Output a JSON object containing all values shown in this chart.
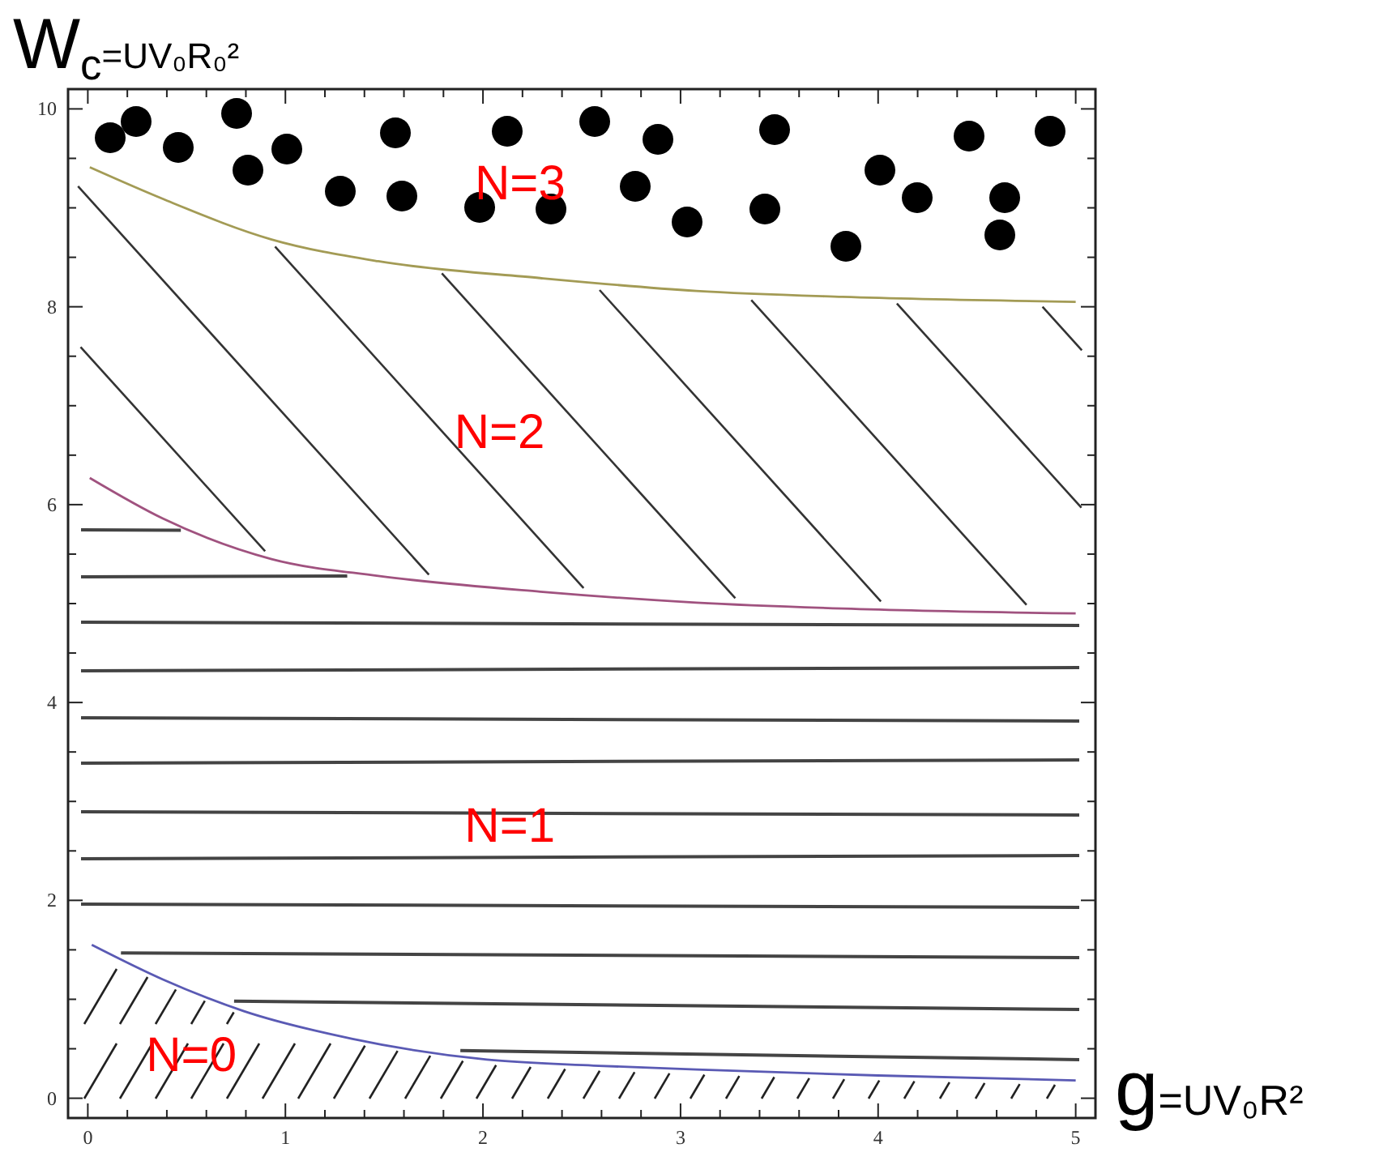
{
  "chart_data": {
    "type": "line",
    "ylabel": "W$_{c}$=UV₀R₀²",
    "xlabel": "g=UV₀R²",
    "xlim": [
      -0.1,
      5.1
    ],
    "ylim": [
      -0.2,
      10.2
    ],
    "xticks": [
      0,
      {
        "value": 0.2,
        "label": null
      },
      {
        "value": 0.4,
        "label": null
      },
      {
        "value": 0.6,
        "label": null
      },
      {
        "value": 0.8,
        "label": null
      },
      1,
      {
        "value": 1.2,
        "label": null
      },
      {
        "value": 1.4,
        "label": null
      },
      {
        "value": 1.6,
        "label": null
      },
      {
        "value": 1.8,
        "label": null
      },
      2,
      {
        "value": 2.2,
        "label": null
      },
      {
        "value": 2.4,
        "label": null
      },
      {
        "value": 2.6,
        "label": null
      },
      {
        "value": 2.8,
        "label": null
      },
      3,
      {
        "value": 3.2,
        "label": null
      },
      {
        "value": 3.4,
        "label": null
      },
      {
        "value": 3.6,
        "label": null
      },
      {
        "value": 3.8,
        "label": null
      },
      4,
      {
        "value": 4.2,
        "label": null
      },
      {
        "value": 4.4,
        "label": null
      },
      {
        "value": 4.6,
        "label": null
      },
      {
        "value": 4.8,
        "label": null
      },
      5
    ],
    "yticks": [
      0,
      {
        "value": 0.5,
        "label": null
      },
      {
        "value": 1,
        "label": null
      },
      {
        "value": 1.5,
        "label": null
      },
      2,
      {
        "value": 2.5,
        "label": null
      },
      {
        "value": 3,
        "label": null
      },
      {
        "value": 3.5,
        "label": null
      },
      4,
      {
        "value": 4.5,
        "label": null
      },
      {
        "value": 5,
        "label": null
      },
      {
        "value": 5.5,
        "label": null
      },
      6,
      {
        "value": 6.5,
        "label": null
      },
      {
        "value": 7,
        "label": null
      },
      {
        "value": 7.5,
        "label": null
      },
      8,
      {
        "value": 8.5,
        "label": null
      },
      {
        "value": 9,
        "label": null
      },
      {
        "value": 9.5,
        "label": null
      },
      10
    ],
    "series": [
      {
        "color": "#5a5ab4",
        "x": [
          0.02,
          0.38,
          0.79,
          1.34,
          2.02,
          2.56,
          3.08,
          4,
          5
        ],
        "values": [
          1.55,
          1.2,
          0.88,
          0.6,
          0.39,
          0.33,
          0.29,
          0.23,
          0.18
        ]
      },
      {
        "color": "#a0527f",
        "x": [
          0.01,
          0.38,
          0.93,
          1.47,
          2.29,
          3.08,
          3.82,
          5
        ],
        "values": [
          6.27,
          5.86,
          5.45,
          5.28,
          5.12,
          5.01,
          4.95,
          4.9
        ]
      },
      {
        "color": "#a39b55",
        "x": [
          0.01,
          0.38,
          0.93,
          1.47,
          2.29,
          3.08,
          3.82,
          5
        ],
        "values": [
          9.41,
          9.09,
          8.68,
          8.46,
          8.29,
          8.16,
          8.1,
          8.05
        ]
      }
    ],
    "annotations": [
      "N=0",
      "N=1",
      "N=2",
      "N=3"
    ]
  }
}
